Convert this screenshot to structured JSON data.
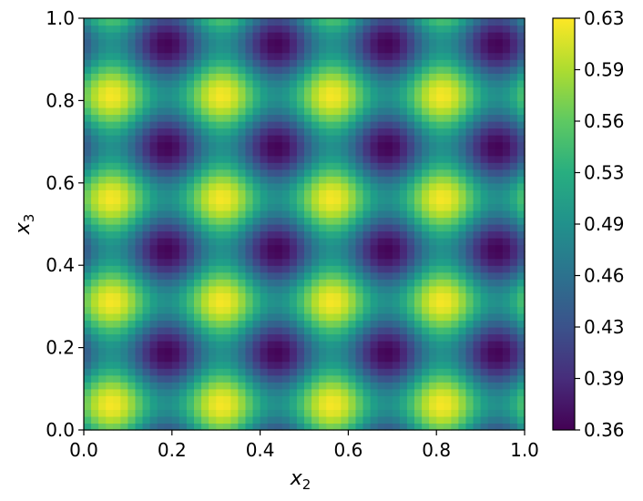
{
  "chart_data": {
    "type": "heatmap",
    "title": "",
    "xlabel": "x",
    "xlabel_sub": "2",
    "ylabel": "x",
    "ylabel_sub": "3",
    "xlim": [
      0.0,
      1.0
    ],
    "ylim": [
      0.0,
      1.0
    ],
    "x_ticks": [
      "0.0",
      "0.2",
      "0.4",
      "0.6",
      "0.8",
      "1.0"
    ],
    "y_ticks": [
      "0.0",
      "0.2",
      "0.4",
      "0.6",
      "0.8",
      "1.0"
    ],
    "grid": false,
    "colormap": "viridis",
    "colorbar": {
      "min": 0.36,
      "max": 0.645,
      "ticks": [
        "0.36",
        "0.39",
        "0.43",
        "0.46",
        "0.49",
        "0.53",
        "0.56",
        "0.59",
        "0.63"
      ]
    },
    "field": {
      "description_of_pattern": "periodic cosine lattice",
      "mean": 0.5025,
      "amplitude_x": 0.07,
      "amplitude_y": 0.07,
      "period_x": 0.25,
      "period_y": 0.25,
      "maxima_x": [
        0.0625,
        0.3125,
        0.5625,
        0.8125
      ],
      "maxima_y": [
        0.0625,
        0.3125,
        0.5625,
        0.8125
      ],
      "minima_x": [
        0.1875,
        0.4375,
        0.6875,
        0.9375
      ],
      "minima_y": [
        0.1875,
        0.4375,
        0.6875,
        0.9375
      ]
    }
  }
}
